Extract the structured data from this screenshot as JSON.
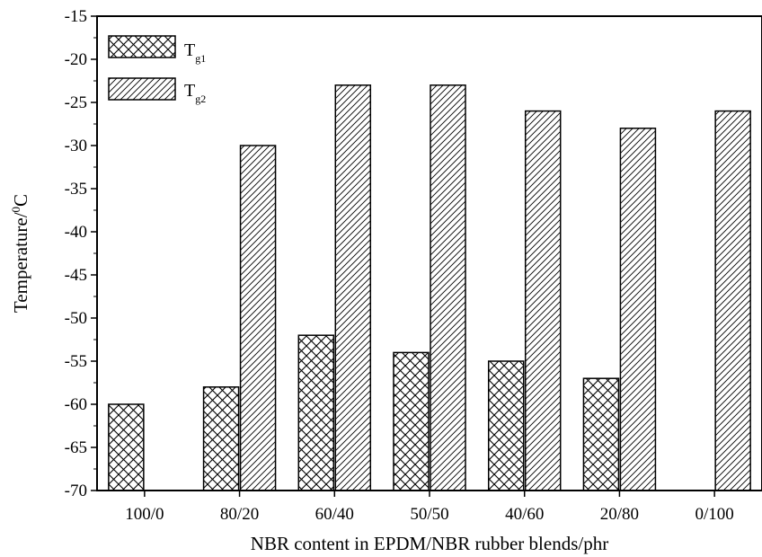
{
  "chart_data": {
    "type": "bar",
    "title": "",
    "xlabel": "NBR content in EPDM/NBR rubber blends/phr",
    "ylabel": "Temperature/°C",
    "ylabel_parts": {
      "main": "Temperature/",
      "sup": "0",
      "unit": "C"
    },
    "categories": [
      "100/0",
      "80/20",
      "60/40",
      "50/50",
      "40/60",
      "20/80",
      "0/100"
    ],
    "ylim": [
      -70,
      -15
    ],
    "yticks": [
      -15,
      -20,
      -25,
      -30,
      -35,
      -40,
      -45,
      -50,
      -55,
      -60,
      -65,
      -70
    ],
    "grid": false,
    "legend_position": "top-left",
    "series": [
      {
        "name": "Tg1",
        "label_main": "T",
        "label_sub": "g1",
        "pattern": "crosshatch",
        "values": [
          -60,
          -58,
          -52,
          -54,
          -55,
          -57,
          null
        ]
      },
      {
        "name": "Tg2",
        "label_main": "T",
        "label_sub": "g2",
        "pattern": "diagonal",
        "values": [
          null,
          -30,
          -23,
          -23,
          -26,
          -28,
          -26
        ]
      }
    ]
  }
}
